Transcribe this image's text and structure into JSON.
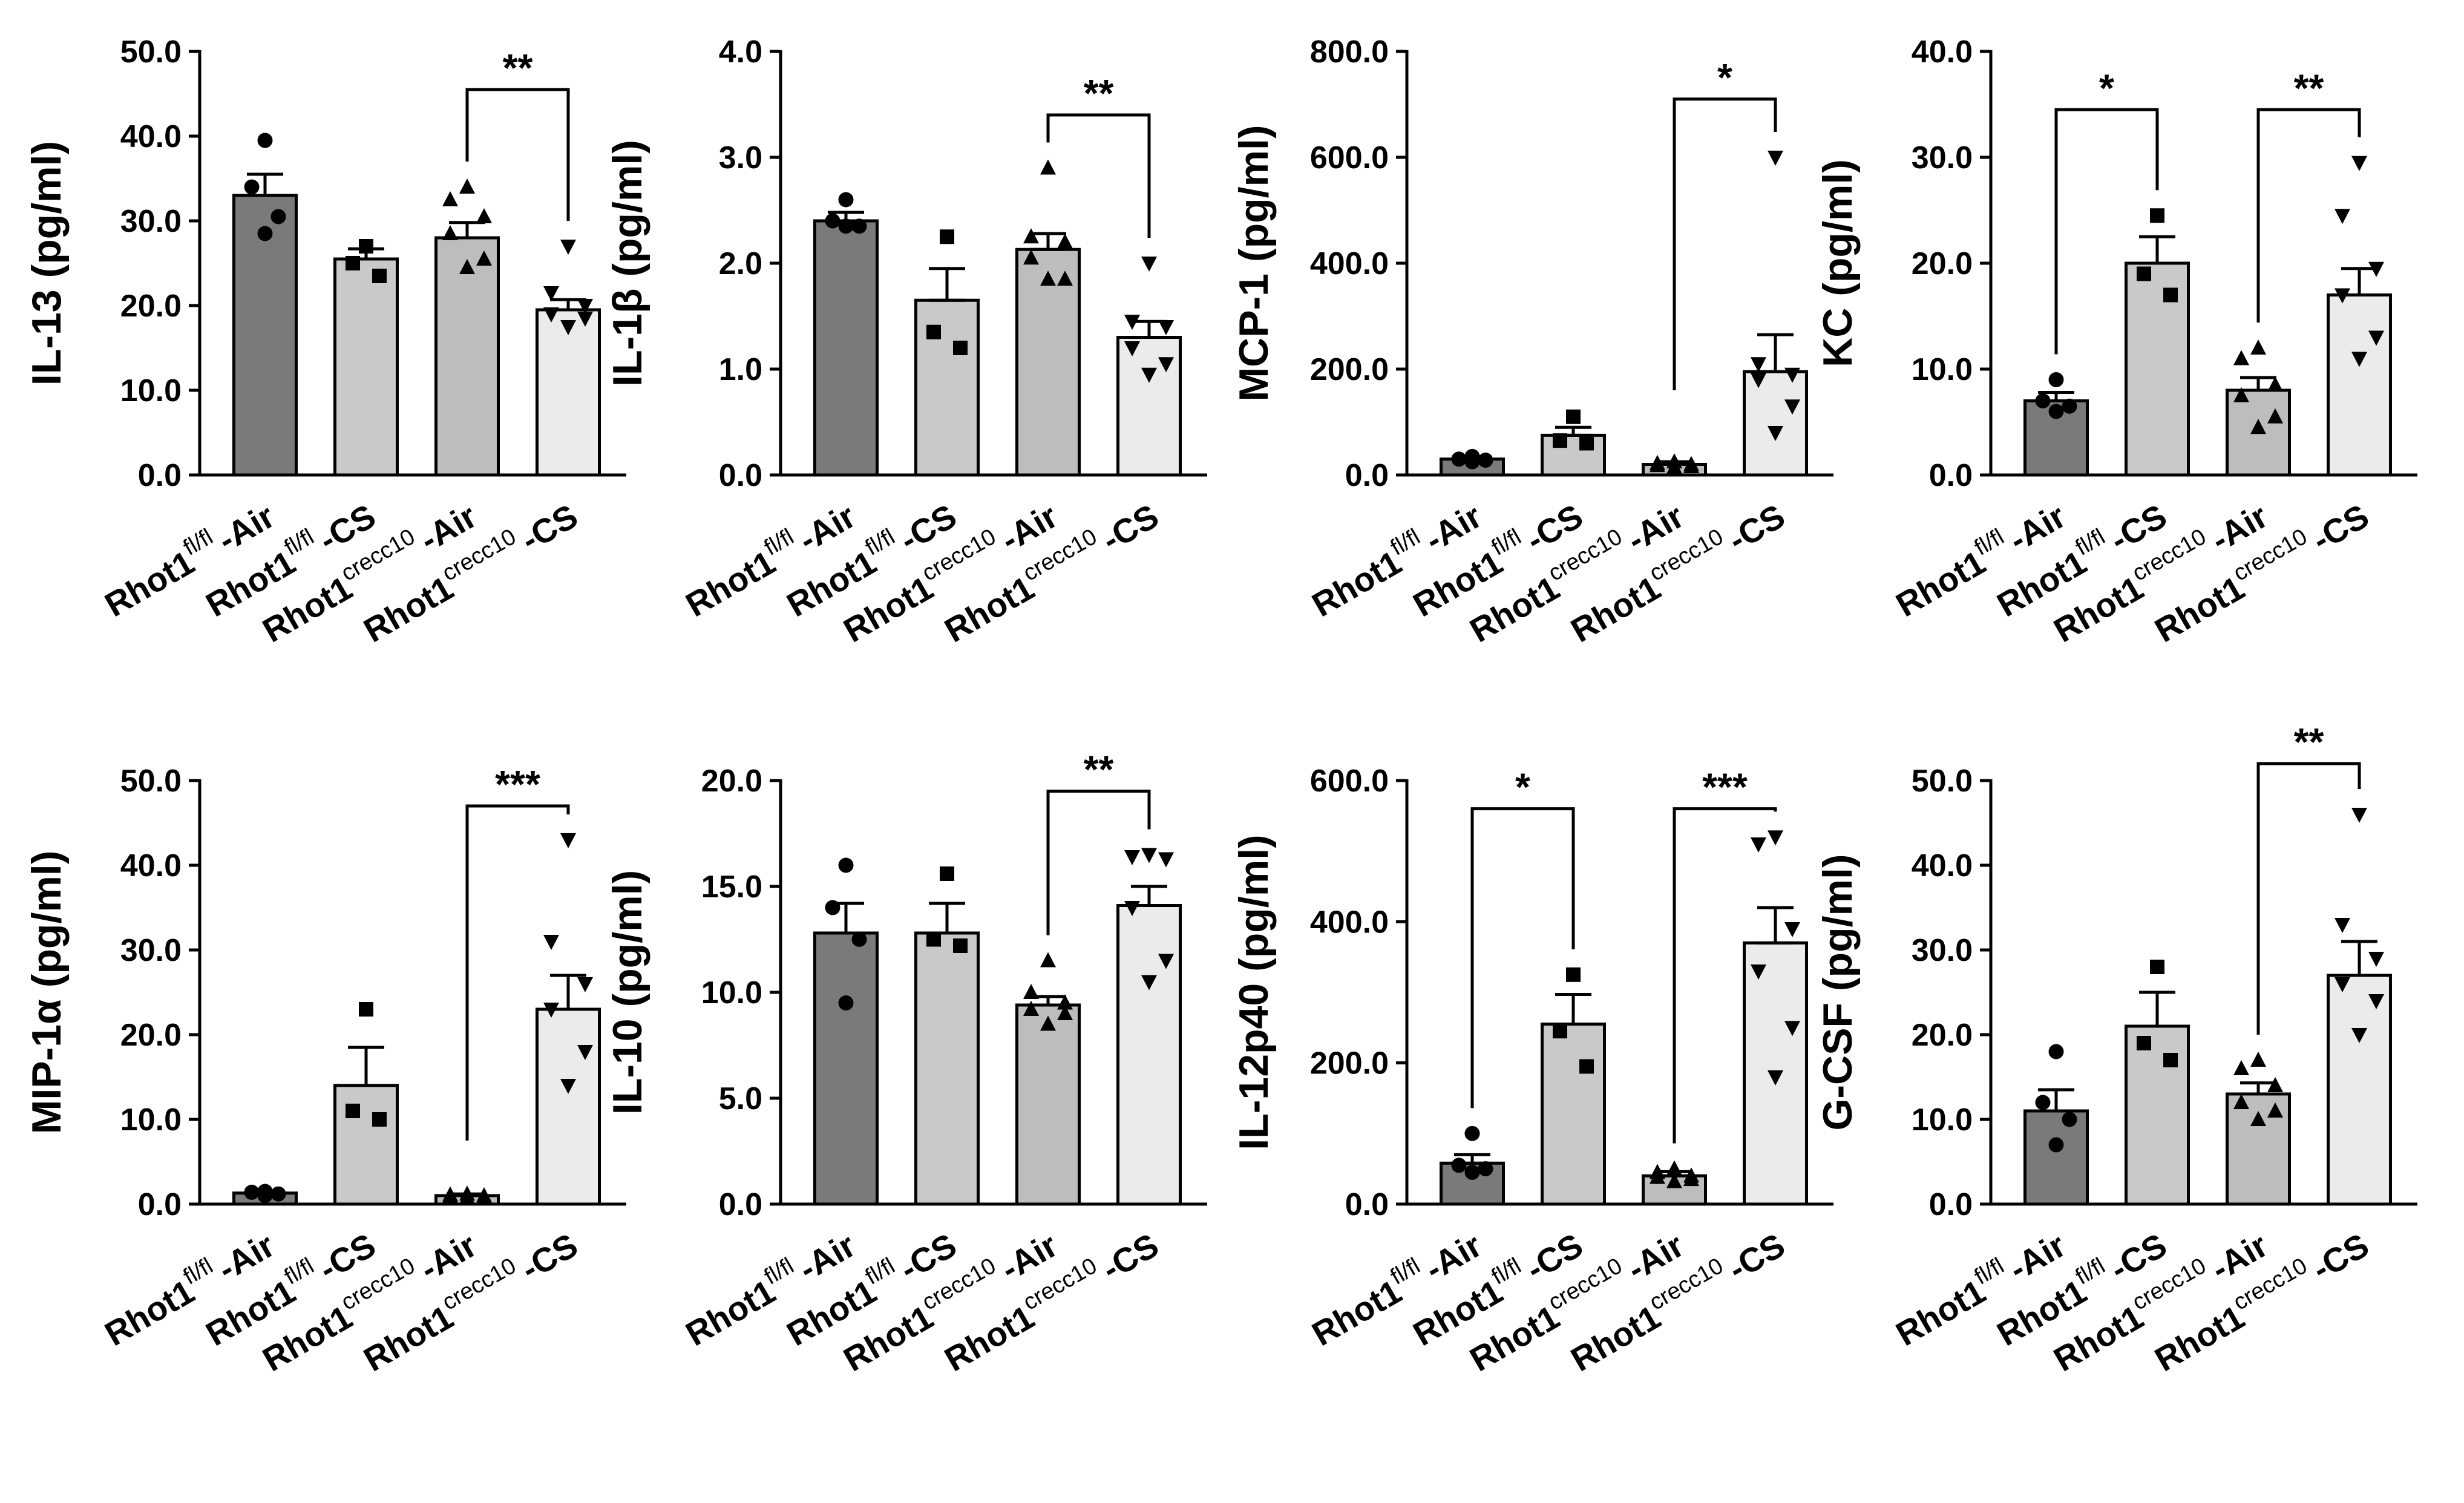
{
  "figure": {
    "colors": {
      "bar_fills": [
        "#7a7a7a",
        "#c9c9c9",
        "#bdbdbd",
        "#ebebeb"
      ],
      "stroke": "#000000"
    },
    "marker_shapes": [
      "circle",
      "square",
      "triangle",
      "triangle-down"
    ]
  },
  "categories": [
    {
      "base": "Rhot1",
      "sup": "fl/fl",
      "suffix": "-Air"
    },
    {
      "base": "Rhot1",
      "sup": "fl/fl",
      "suffix": "-CS"
    },
    {
      "base": "Rhot1",
      "sup": "crecc10",
      "suffix": "-Air"
    },
    {
      "base": "Rhot1",
      "sup": "crecc10",
      "suffix": "-CS"
    }
  ],
  "chart_data": [
    {
      "type": "bar",
      "ylabel": "IL-13 (pg/ml)",
      "ylim": [
        0,
        50
      ],
      "ticks": [
        "0.0",
        "10.0",
        "20.0",
        "30.0",
        "40.0",
        "50.0"
      ],
      "means": [
        33,
        25.5,
        28,
        19.5
      ],
      "sem": [
        2.5,
        1.2,
        1.8,
        1.2
      ],
      "points": [
        [
          39.5,
          34,
          30.5,
          28.5
        ],
        [
          27,
          25,
          23.5
        ],
        [
          34,
          32.5,
          30.5,
          28.5,
          25.5,
          24.5
        ],
        [
          27,
          21.5,
          20,
          19,
          18.5,
          17.5
        ]
      ],
      "significance": [
        {
          "from": 2,
          "to": 3,
          "label": "**",
          "y": 45.5
        }
      ]
    },
    {
      "type": "bar",
      "ylabel": "IL-1β (pg/ml)",
      "ylim": [
        0,
        4
      ],
      "ticks": [
        "0.0",
        "1.0",
        "2.0",
        "3.0",
        "4.0"
      ],
      "means": [
        2.4,
        1.65,
        2.13,
        1.3
      ],
      "sem": [
        0.08,
        0.3,
        0.15,
        0.15
      ],
      "points": [
        [
          2.6,
          2.4,
          2.35,
          2.35
        ],
        [
          2.25,
          1.35,
          1.2
        ],
        [
          2.9,
          2.25,
          2.2,
          2.05,
          1.85,
          1.85
        ],
        [
          2.0,
          1.45,
          1.4,
          1.2,
          1.05,
          0.95
        ]
      ],
      "significance": [
        {
          "from": 2,
          "to": 3,
          "label": "**",
          "y": 3.4
        }
      ]
    },
    {
      "type": "bar",
      "ylabel": "MCP-1 (pg/ml)",
      "ylim": [
        0,
        800
      ],
      "ticks": [
        "0.0",
        "200.0",
        "400.0",
        "600.0",
        "800.0"
      ],
      "means": [
        30,
        75,
        20,
        195
      ],
      "sem": [
        5,
        15,
        5,
        70
      ],
      "points": [
        [
          35,
          30,
          28,
          25
        ],
        [
          110,
          65,
          60
        ],
        [
          25,
          22,
          20,
          18,
          16,
          15
        ],
        [
          600,
          210,
          190,
          180,
          130,
          80
        ]
      ],
      "significance": [
        {
          "from": 2,
          "to": 3,
          "label": "*",
          "y": 710,
          "left_bottom": 160
        }
      ]
    },
    {
      "type": "bar",
      "ylabel": "KC (pg/ml)",
      "ylim": [
        0,
        40
      ],
      "ticks": [
        "0.0",
        "10.0",
        "20.0",
        "30.0",
        "40.0"
      ],
      "means": [
        7,
        20,
        8,
        17
      ],
      "sem": [
        0.8,
        2.5,
        1.2,
        2.5
      ],
      "points": [
        [
          9,
          7,
          6.5,
          6
        ],
        [
          24.5,
          19,
          17
        ],
        [
          12,
          11,
          8.5,
          7.5,
          5.5,
          4.5
        ],
        [
          29.5,
          24.5,
          19.5,
          17,
          13,
          11
        ]
      ],
      "significance": [
        {
          "from": 0,
          "to": 1,
          "label": "*",
          "y": 34.5
        },
        {
          "from": 2,
          "to": 3,
          "label": "**",
          "y": 34.5
        }
      ]
    },
    {
      "type": "bar",
      "ylabel": "MIP-1α (pg/ml)",
      "ylim": [
        0,
        50
      ],
      "ticks": [
        "0.0",
        "10.0",
        "20.0",
        "30.0",
        "40.0",
        "50.0"
      ],
      "means": [
        1.3,
        14,
        1,
        23
      ],
      "sem": [
        0.2,
        4.5,
        0.2,
        4
      ],
      "points": [
        [
          1.5,
          1.4,
          1.2,
          1.0
        ],
        [
          23,
          11,
          10
        ],
        [
          1.2,
          1.1,
          1.0,
          0.9,
          0.8,
          0.8
        ],
        [
          43,
          31,
          26,
          23,
          18,
          14
        ]
      ],
      "significance": [
        {
          "from": 2,
          "to": 3,
          "label": "***",
          "y": 47,
          "left_bottom": 7.5
        }
      ]
    },
    {
      "type": "bar",
      "ylabel": "IL-10 (pg/ml)",
      "ylim": [
        0,
        20
      ],
      "ticks": [
        "0.0",
        "5.0",
        "10.0",
        "15.0",
        "20.0"
      ],
      "means": [
        12.8,
        12.8,
        9.4,
        14.1
      ],
      "sem": [
        1.4,
        1.4,
        0.4,
        0.9
      ],
      "points": [
        [
          16,
          14,
          12.5,
          9.5
        ],
        [
          15.6,
          12.5,
          12.2
        ],
        [
          11.5,
          10,
          9.5,
          9.2,
          9,
          8.5
        ],
        [
          16.5,
          16.4,
          16.3,
          14,
          11.5,
          10.5
        ]
      ],
      "significance": [
        {
          "from": 2,
          "to": 3,
          "label": "**",
          "y": 19.5
        }
      ]
    },
    {
      "type": "bar",
      "ylabel": "IL-12p40 (pg/ml)",
      "ylim": [
        0,
        600
      ],
      "ticks": [
        "0.0",
        "200.0",
        "400.0",
        "600.0"
      ],
      "means": [
        58,
        255,
        40,
        370
      ],
      "sem": [
        12,
        42,
        6,
        50
      ],
      "points": [
        [
          100,
          55,
          50,
          45
        ],
        [
          325,
          245,
          195
        ],
        [
          50,
          45,
          40,
          38,
          35,
          32
        ],
        [
          520,
          510,
          390,
          330,
          250,
          180
        ]
      ],
      "significance": [
        {
          "from": 0,
          "to": 1,
          "label": "*",
          "y": 560
        },
        {
          "from": 2,
          "to": 3,
          "label": "***",
          "y": 560
        }
      ]
    },
    {
      "type": "bar",
      "ylabel": "G-CSF (pg/ml)",
      "ylim": [
        0,
        50
      ],
      "ticks": [
        "0.0",
        "10.0",
        "20.0",
        "30.0",
        "40.0",
        "50.0"
      ],
      "means": [
        11,
        21,
        13,
        27
      ],
      "sem": [
        2.5,
        4,
        1.3,
        4
      ],
      "points": [
        [
          18,
          12,
          10,
          7
        ],
        [
          28,
          19,
          17
        ],
        [
          17,
          16,
          14,
          12,
          11,
          10
        ],
        [
          46,
          33,
          29,
          26,
          24,
          20
        ]
      ],
      "significance": [
        {
          "from": 2,
          "to": 3,
          "label": "**",
          "y": 52
        }
      ]
    }
  ]
}
